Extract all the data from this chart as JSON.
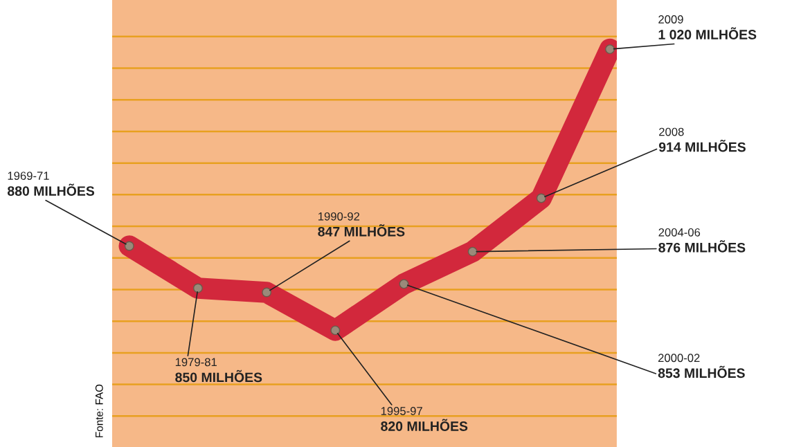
{
  "chart_data": {
    "type": "line",
    "categories": [
      null,
      null,
      null,
      null,
      null,
      null,
      null,
      null
    ],
    "series": [
      {
        "color": "#d2283c",
        "values": [
          880,
          850,
          847,
          820,
          853,
          876,
          914,
          1020
        ],
        "value_labels": [
          "880 MILHÕES",
          "850 MILHÕES",
          "847 MILHÕES",
          "820 MILHÕES",
          "853 MILHÕES",
          "876 MILHÕES",
          "914 MILHÕES",
          "1 020 MILHÕES"
        ]
      }
    ],
    "ylim": [
      737,
      1055
    ],
    "yticks": [
      {
        "value": 759,
        "label": null
      },
      {
        "value": 781.5,
        "label": null
      },
      {
        "value": 804,
        "label": null
      },
      {
        "value": 826.5,
        "label": null
      },
      {
        "value": 849,
        "label": null
      },
      {
        "value": 871.5,
        "label": null
      },
      {
        "value": 894,
        "label": null
      },
      {
        "value": 916.5,
        "label": null
      },
      {
        "value": 939,
        "label": null
      },
      {
        "value": 961.5,
        "label": null
      },
      {
        "value": 984,
        "label": null
      },
      {
        "value": 1006.5,
        "label": null
      },
      {
        "value": 1029,
        "label": null
      }
    ],
    "grid": "y",
    "marker": "circle",
    "line_style": "solid",
    "annotations": [
      "1969-71",
      "1979-81",
      "1990-92",
      "1995-97",
      "2000-02",
      "2004-06",
      "2008",
      "2009",
      "Fonte: FAO"
    ]
  }
}
